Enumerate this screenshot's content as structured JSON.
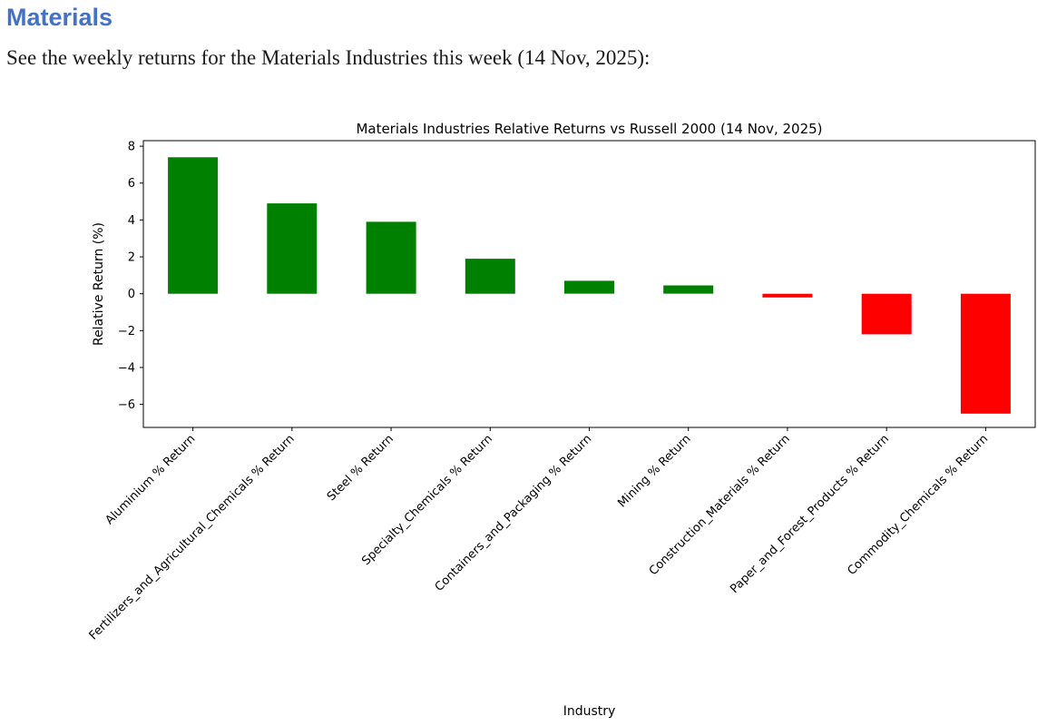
{
  "document": {
    "heading": "Materials",
    "heading_color": "#4472C4",
    "intro": "See the weekly returns for the Materials Industries this week (14 Nov, 2025):"
  },
  "chart_data": {
    "type": "bar",
    "title": "Materials Industries Relative Returns vs Russell 2000 (14 Nov, 2025)",
    "xlabel": "Industry",
    "ylabel": "Relative Return (%)",
    "categories": [
      "Aluminium % Return",
      "Fertilizers_and_Agricultural_Chemicals % Return",
      "Steel % Return",
      "Specialty_Chemicals % Return",
      "Containers_and_Packaging % Return",
      "Mining % Return",
      "Construction_Materials % Return",
      "Paper_and_Forest_Products % Return",
      "Commodity_Chemicals % Return"
    ],
    "values": [
      7.4,
      4.9,
      3.9,
      1.9,
      0.7,
      0.45,
      -0.2,
      -2.2,
      -6.5
    ],
    "ylim": [
      -7.25,
      8.3
    ],
    "yticks": [
      8,
      6,
      4,
      2,
      0,
      -2,
      -4,
      -6
    ],
    "x_tick_rotation": 45,
    "grid": false,
    "legend": null,
    "positive_color": "#008000",
    "negative_color": "#ff0000",
    "axis_color": "#000000",
    "text_color": "#000000",
    "background_color": "#ffffff"
  }
}
